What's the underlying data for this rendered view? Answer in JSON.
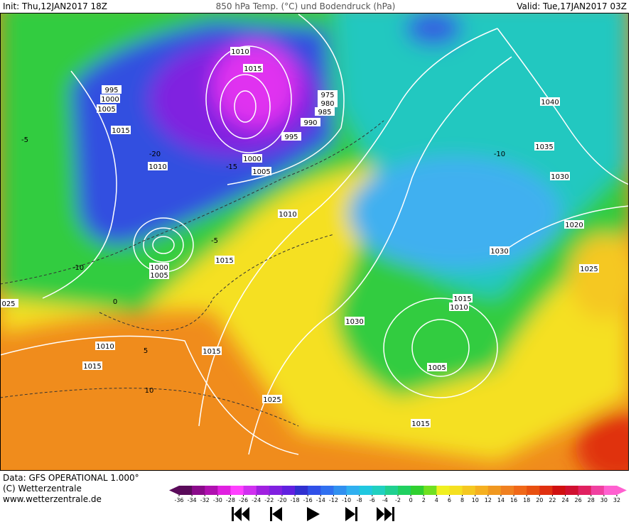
{
  "header": {
    "init": "Init: Thu,12JAN2017 18Z",
    "title": "850 hPa Temp. (°C) und Bodendruck (hPa)",
    "valid": "Valid: Tue,17JAN2017 03Z"
  },
  "isobar_labels": [
    "1010",
    "1015",
    "995",
    "1000",
    "1005",
    "975",
    "980",
    "985",
    "990",
    "1015",
    "995",
    "1000",
    "1005",
    "1010",
    "1010",
    "1015",
    "1000",
    "1005",
    "1040",
    "1035",
    "1030",
    "1020",
    "1030",
    "1025",
    "1015",
    "1010",
    "1030",
    "025",
    "1010",
    "1015",
    "1015",
    "1005",
    "1025",
    "1015"
  ],
  "temperature_labels": [
    "-10",
    "-5",
    "0",
    "5",
    "10",
    "-15",
    "-20",
    "-10",
    "-5"
  ],
  "footer": {
    "source": "Data: GFS OPERATIONAL 1.000°",
    "copyright": "(C) Wetterzentrale",
    "url": "www.wetterzentrale.de"
  },
  "colorbar": {
    "ticks": [
      -36,
      -34,
      -32,
      -30,
      -28,
      -26,
      -24,
      -22,
      -20,
      -18,
      -16,
      -14,
      -12,
      -10,
      -8,
      -6,
      -4,
      -2,
      0,
      2,
      4,
      6,
      8,
      10,
      12,
      14,
      16,
      18,
      20,
      22,
      24,
      26,
      28,
      30,
      32
    ],
    "colors": [
      "#5a0a5a",
      "#8a0a8a",
      "#b010b0",
      "#e020e0",
      "#ff40ff",
      "#d030f0",
      "#a020e0",
      "#8020e0",
      "#6020e0",
      "#3030d0",
      "#3050e8",
      "#3070f0",
      "#3090f0",
      "#30b0f0",
      "#20c8e0",
      "#20d0c0",
      "#20d090",
      "#20d060",
      "#30d030",
      "#70e020",
      "#f0f020",
      "#f5e020",
      "#f5c820",
      "#f5b020",
      "#f09820",
      "#f08020",
      "#f06818",
      "#e85010",
      "#e03010",
      "#d01010",
      "#d01030",
      "#e02060",
      "#f040a0",
      "#ff60d0"
    ]
  }
}
